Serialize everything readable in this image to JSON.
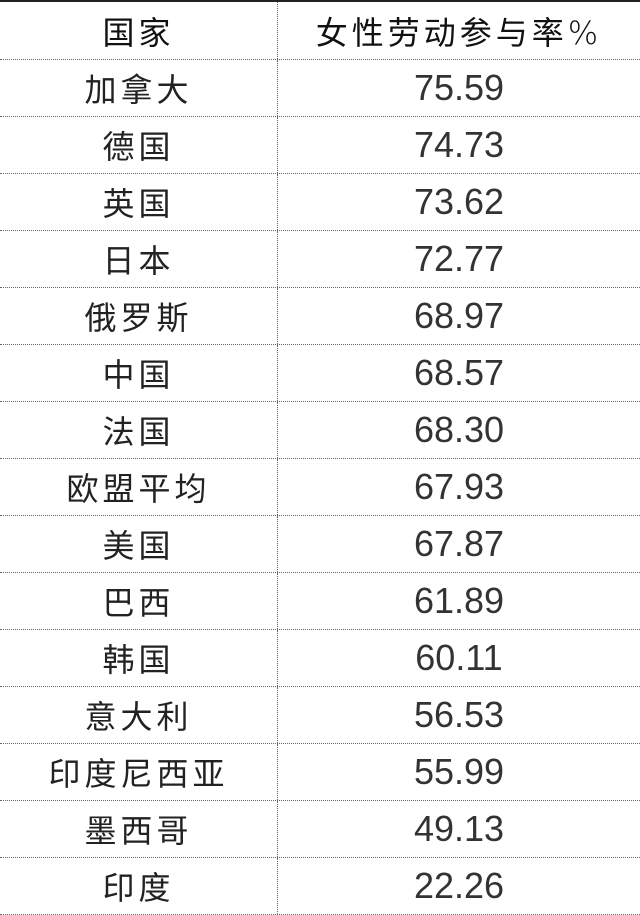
{
  "chart_data": {
    "type": "table",
    "columns": [
      "国家",
      "女性劳动参与率%"
    ],
    "rows": [
      [
        "加拿大",
        "75.59"
      ],
      [
        "德国",
        "74.73"
      ],
      [
        "英国",
        "73.62"
      ],
      [
        "日本",
        "72.77"
      ],
      [
        "俄罗斯",
        "68.97"
      ],
      [
        "中国",
        "68.57"
      ],
      [
        "法国",
        "68.30"
      ],
      [
        "欧盟平均",
        "67.93"
      ],
      [
        "美国",
        "67.87"
      ],
      [
        "巴西",
        "61.89"
      ],
      [
        "韩国",
        "60.11"
      ],
      [
        "意大利",
        "56.53"
      ],
      [
        "印度尼西亚",
        "55.99"
      ],
      [
        "墨西哥",
        "49.13"
      ],
      [
        "印度",
        "22.26"
      ]
    ]
  }
}
